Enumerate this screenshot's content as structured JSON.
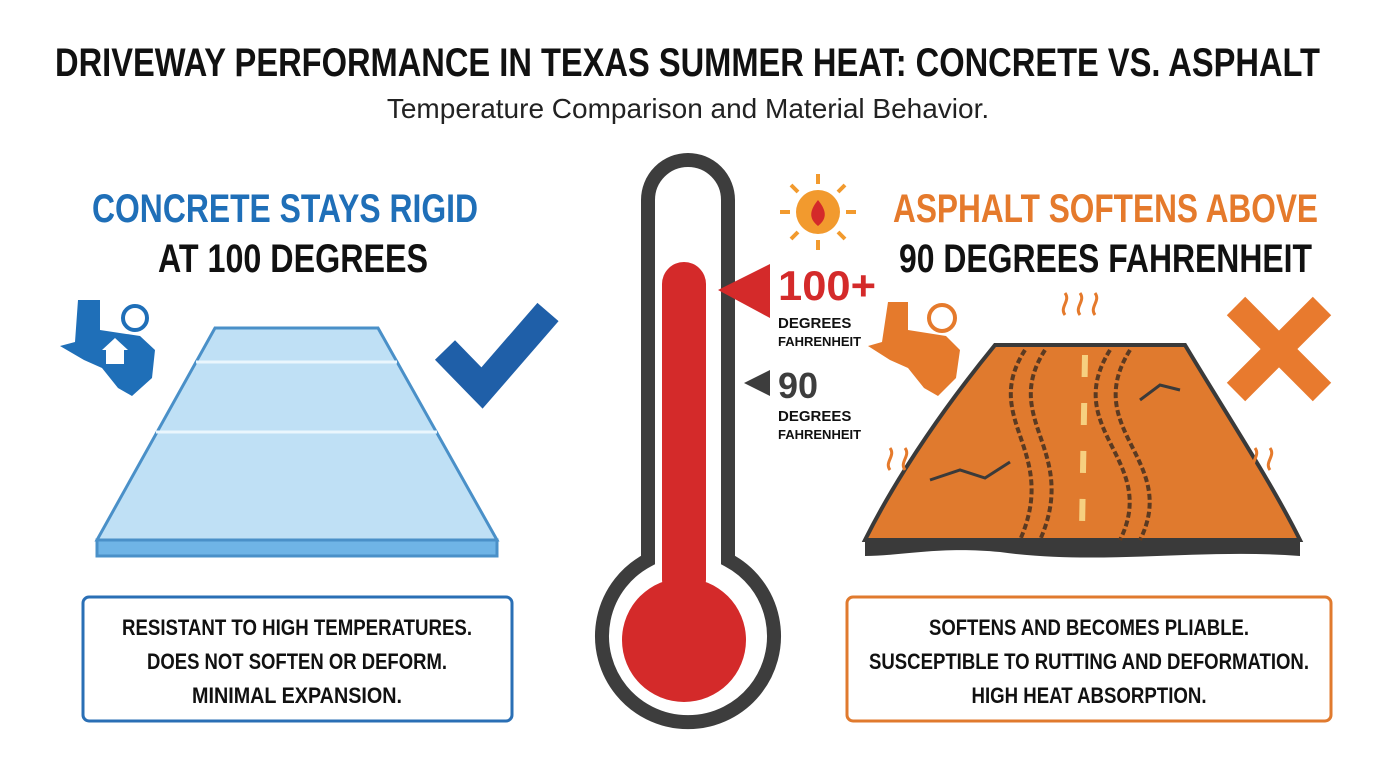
{
  "header": {
    "title": "DRIVEWAY PERFORMANCE IN TEXAS SUMMER HEAT: CONCRETE VS. ASPHALT",
    "subtitle": "Temperature Comparison and Material Behavior."
  },
  "concrete": {
    "heading": [
      "CONCRETE STAYS RIGID",
      "AT 100 DEGREES"
    ],
    "points": [
      "RESISTANT TO HIGH TEMPERATURES.",
      "DOES NOT SOFTEN OR DEFORM.",
      "MINIMAL EXPANSION."
    ]
  },
  "asphalt": {
    "heading": [
      "ASPHALT SOFTENS ABOVE",
      "90 DEGREES FAHRENHEIT"
    ],
    "points": [
      "SOFTENS AND BECOMES PLIABLE.",
      "SUSCEPTIBLE TO RUTTING AND DEFORMATION.",
      "HIGH HEAT ABSORPTION."
    ]
  },
  "thermometer": {
    "markers": [
      {
        "value": "100+",
        "unit": [
          "DEGREES",
          "FAHRENHEIT"
        ]
      },
      {
        "value": "90",
        "unit": [
          "DEGREES",
          "FAHRENHEIT"
        ]
      }
    ]
  }
}
